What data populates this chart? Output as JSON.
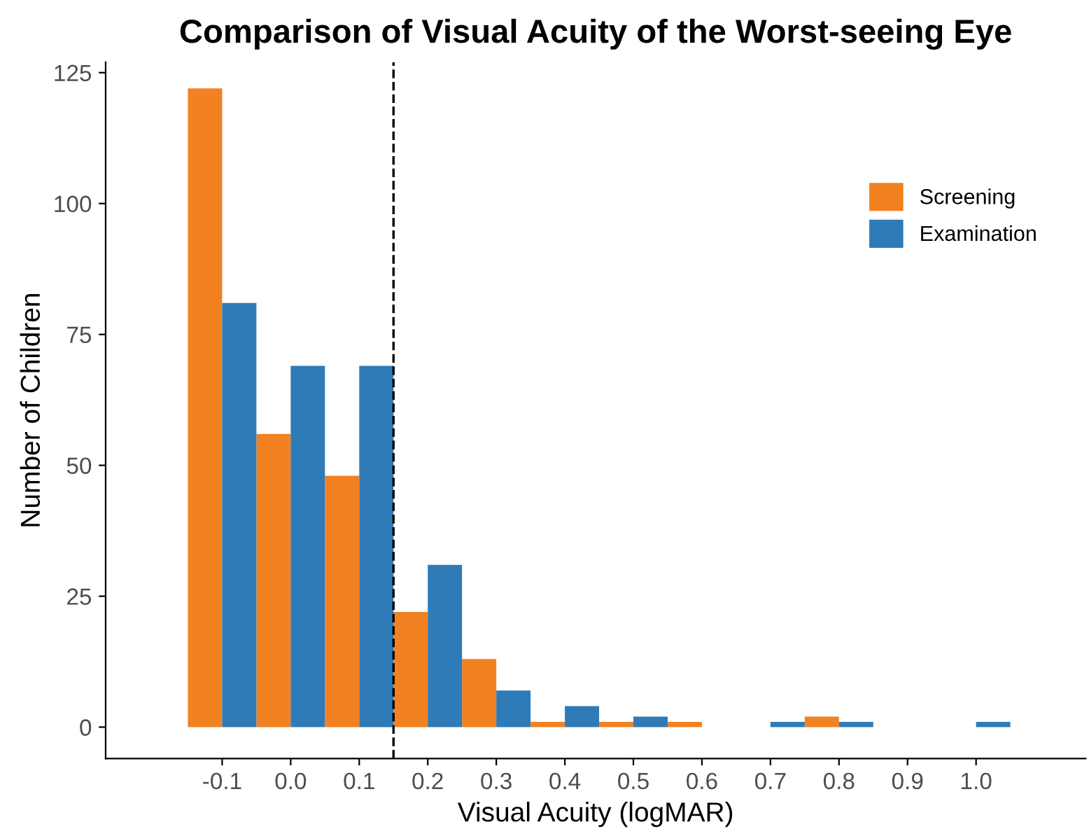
{
  "chart_data": {
    "type": "bar",
    "title": "Comparison of Visual Acuity of the Worst-seeing Eye",
    "xlabel": "Visual Acuity (logMAR)",
    "ylabel": "Number of Children",
    "x": [
      -0.1,
      0.0,
      0.1,
      0.2,
      0.3,
      0.4,
      0.5,
      0.6,
      0.7,
      0.8,
      0.9,
      1.0
    ],
    "series": [
      {
        "name": "Screening",
        "color": "#f28121",
        "values": [
          122,
          56,
          48,
          22,
          13,
          1,
          1,
          1,
          0,
          2,
          0,
          0
        ]
      },
      {
        "name": "Examination",
        "color": "#2f7bb8",
        "values": [
          81,
          69,
          69,
          31,
          7,
          4,
          2,
          0,
          1,
          1,
          0,
          1
        ]
      }
    ],
    "xlim": [
      -0.27,
      1.16
    ],
    "xticks": [
      {
        "value": -0.1,
        "label": "-0.1"
      },
      {
        "value": 0.0,
        "label": "0.0"
      },
      {
        "value": 0.1,
        "label": "0.1"
      },
      {
        "value": 0.2,
        "label": "0.2"
      },
      {
        "value": 0.3,
        "label": "0.3"
      },
      {
        "value": 0.4,
        "label": "0.4"
      },
      {
        "value": 0.5,
        "label": "0.5"
      },
      {
        "value": 0.6,
        "label": "0.6"
      },
      {
        "value": 0.7,
        "label": "0.7"
      },
      {
        "value": 0.8,
        "label": "0.8"
      },
      {
        "value": 0.9,
        "label": "0.9"
      },
      {
        "value": 1.0,
        "label": "1.0"
      }
    ],
    "ylim": [
      -6,
      127
    ],
    "yticks": [
      0,
      25,
      50,
      75,
      100,
      125
    ],
    "ref_lines": [
      {
        "axis": "x",
        "value": 0.15,
        "color": "#000000",
        "line_style": "dashed"
      }
    ],
    "grid": false,
    "legend": "right"
  }
}
